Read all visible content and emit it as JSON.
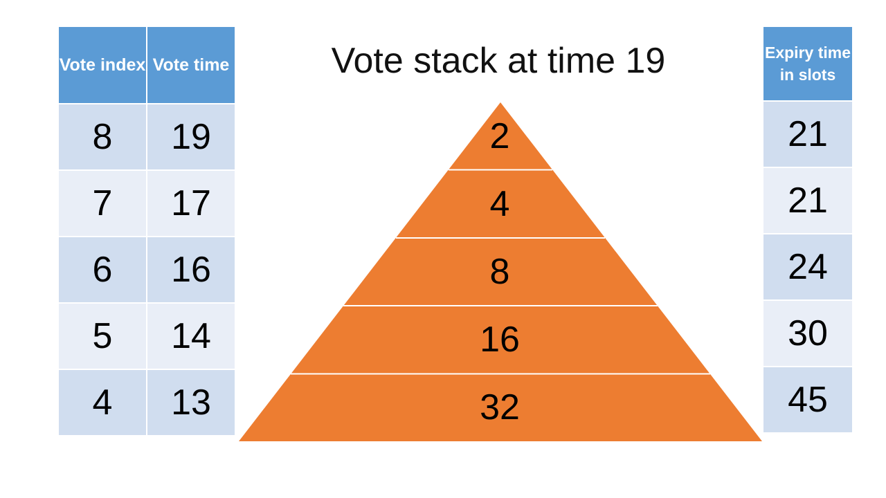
{
  "title": "Vote stack at time 19",
  "left_table": {
    "headers": [
      "Vote index",
      "Vote time"
    ],
    "rows": [
      [
        "8",
        "19"
      ],
      [
        "7",
        "17"
      ],
      [
        "6",
        "16"
      ],
      [
        "5",
        "14"
      ],
      [
        "4",
        "13"
      ]
    ]
  },
  "pyramid": {
    "fill_color": "#ed7d31",
    "levels": [
      "2",
      "4",
      "8",
      "16",
      "32"
    ]
  },
  "right_table": {
    "header": "Expiry time in slots",
    "rows": [
      "21",
      "21",
      "24",
      "30",
      "45"
    ]
  }
}
